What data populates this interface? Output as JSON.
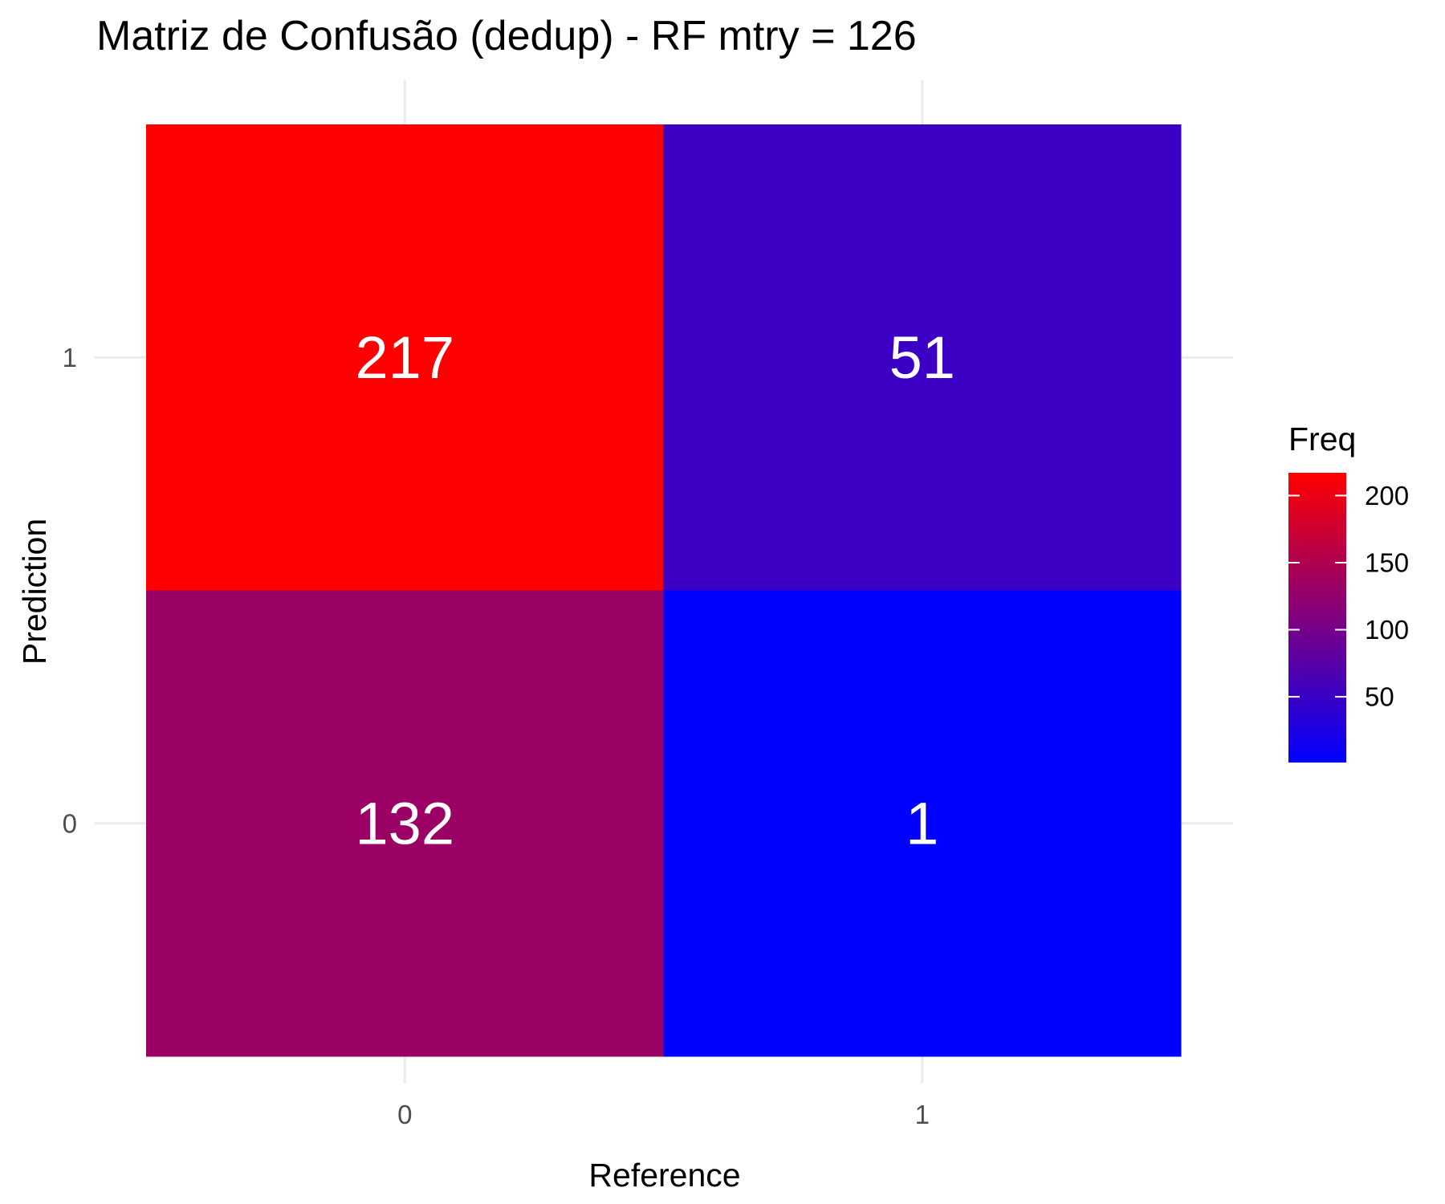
{
  "chart_data": {
    "type": "heatmap",
    "title": "Matriz de Confusão (dedup) - RF mtry = 126",
    "xlabel": "Reference",
    "ylabel": "Prediction",
    "x_categories": [
      "0",
      "1"
    ],
    "y_categories": [
      "0",
      "1"
    ],
    "cells": [
      {
        "reference": "0",
        "prediction": "1",
        "freq": 217,
        "label": "217"
      },
      {
        "reference": "1",
        "prediction": "1",
        "freq": 51,
        "label": "51"
      },
      {
        "reference": "0",
        "prediction": "0",
        "freq": 132,
        "label": "132"
      },
      {
        "reference": "1",
        "prediction": "0",
        "freq": 1,
        "label": "1"
      }
    ],
    "color_scale": {
      "low": "#0000ff",
      "high": "#ff0000",
      "min": 1,
      "max": 217
    },
    "legend": {
      "title": "Freq",
      "ticks": [
        50,
        100,
        150,
        200
      ],
      "tick_labels": [
        "50",
        "100",
        "150",
        "200"
      ],
      "placement": "right"
    },
    "grid": true
  }
}
